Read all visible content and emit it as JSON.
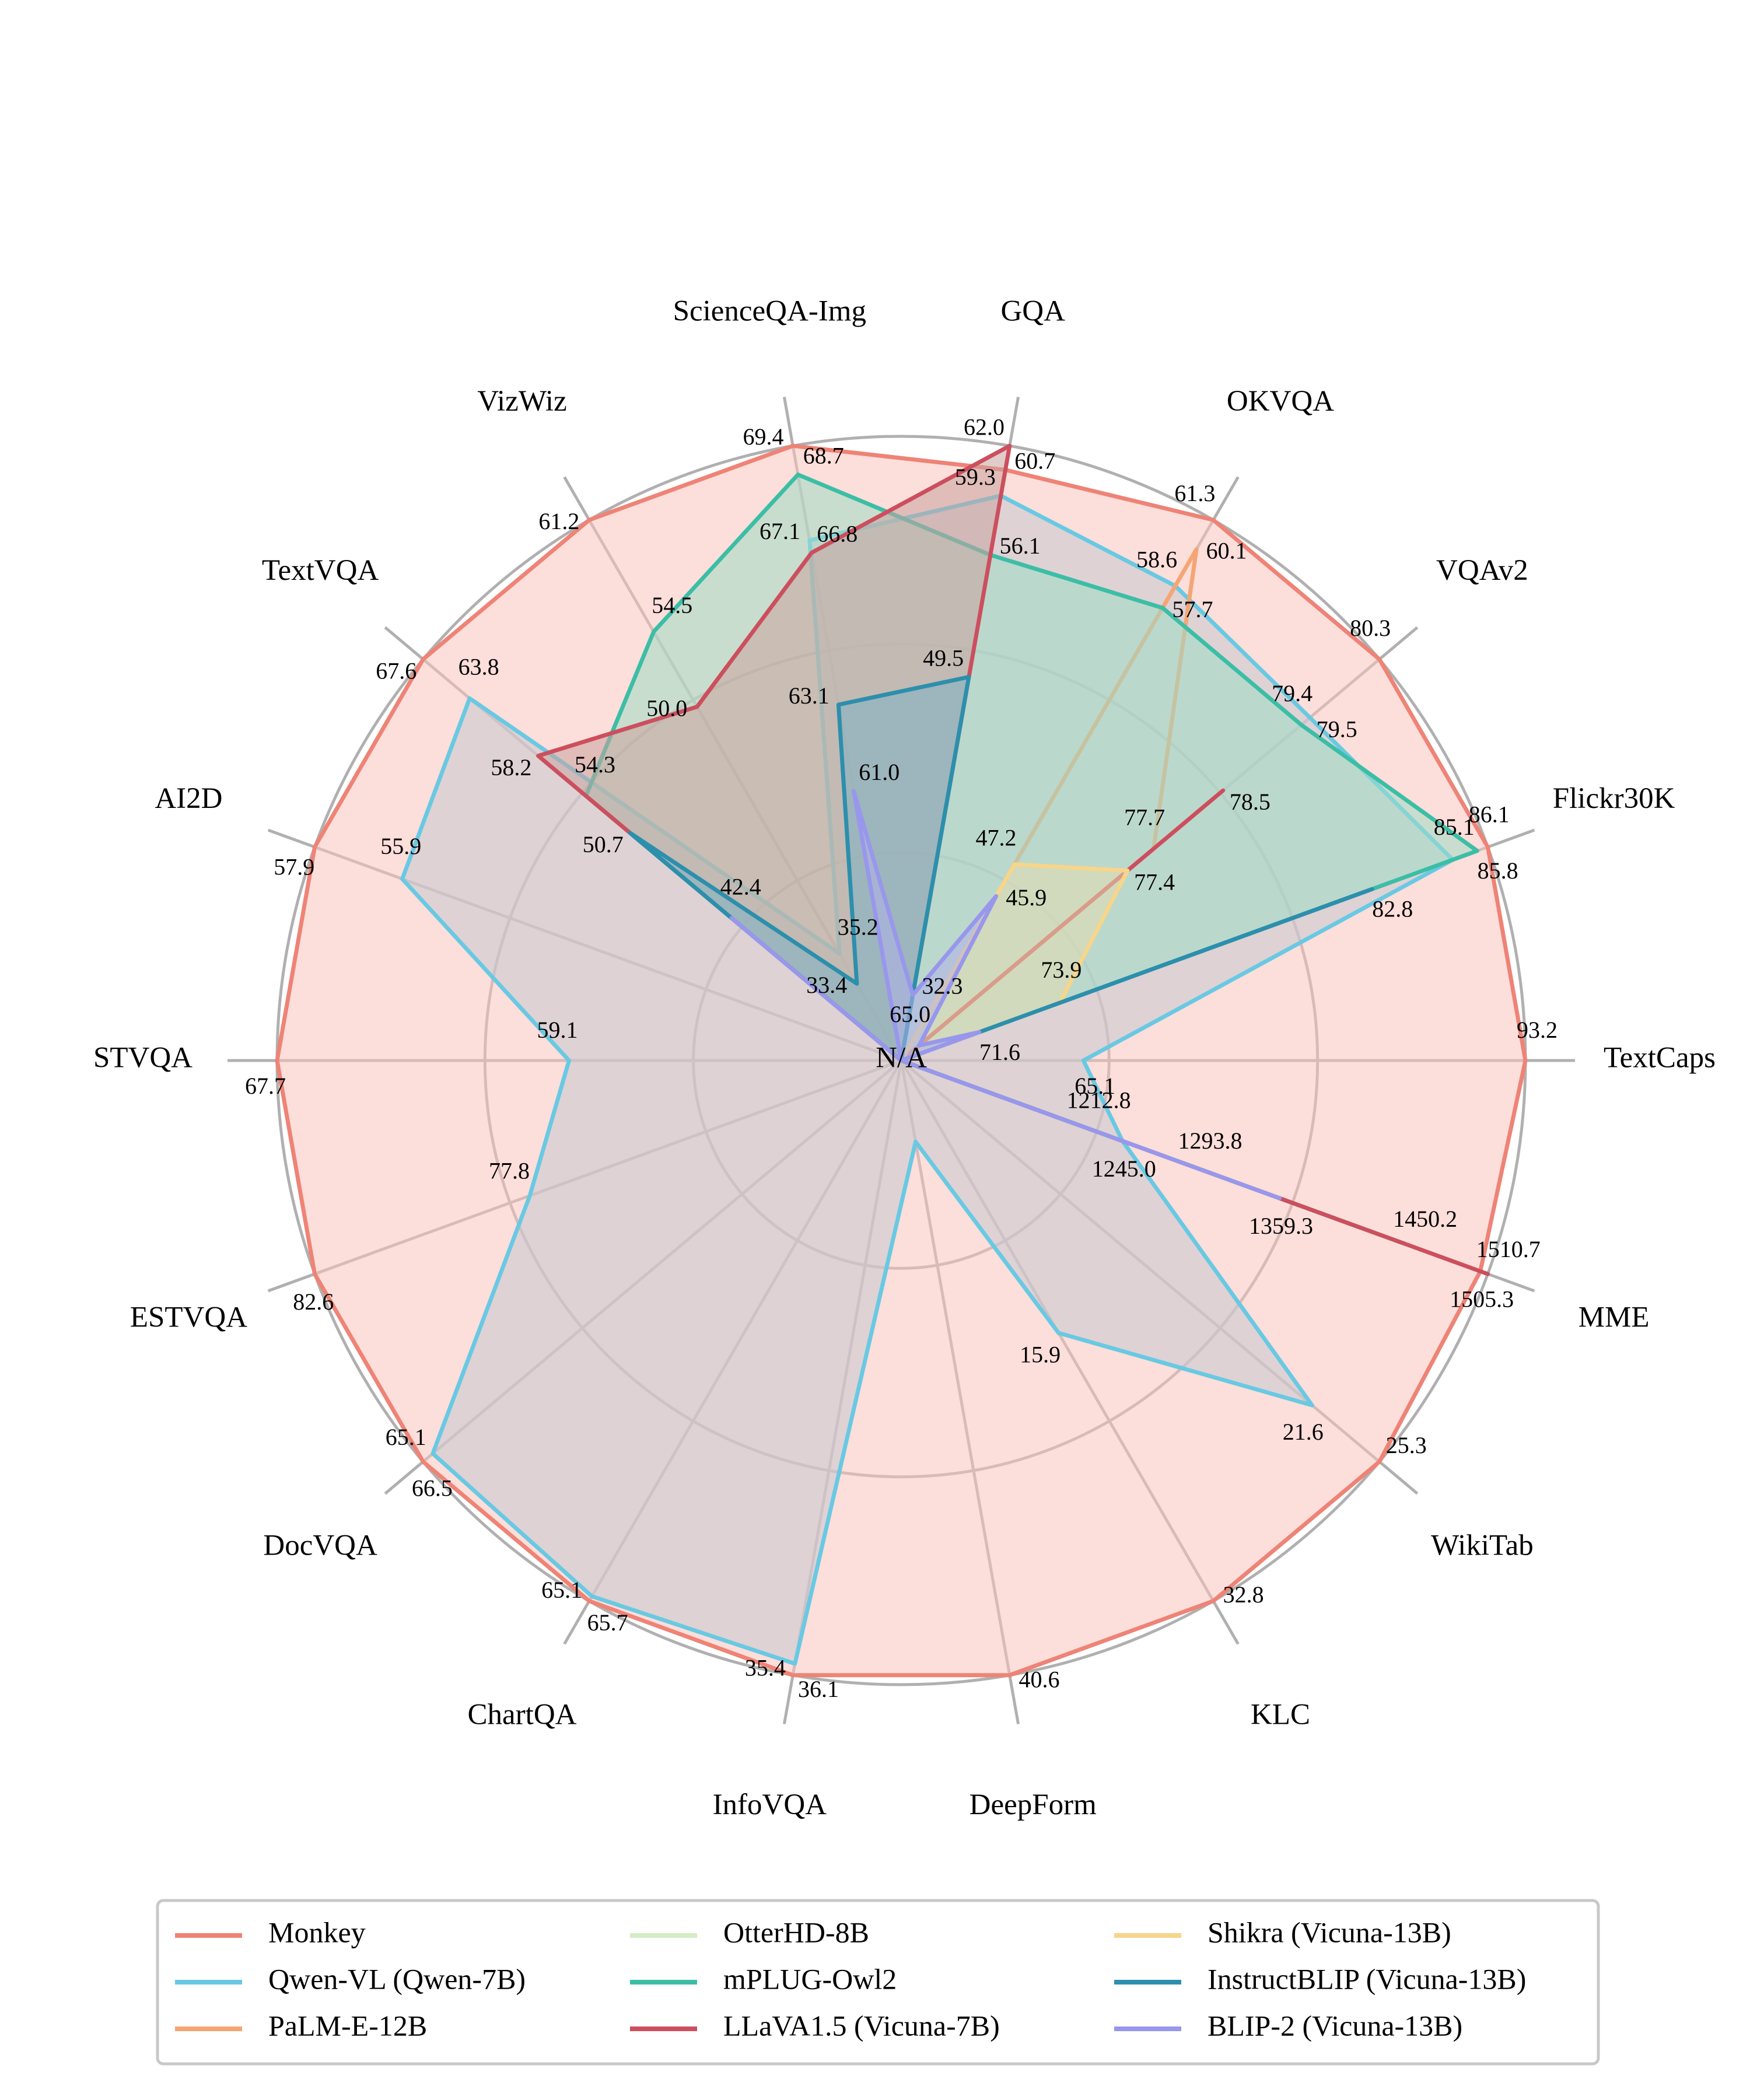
{
  "chart_data": {
    "type": "radar",
    "title": "",
    "center_label": "N/A",
    "grid": true,
    "legend_position": "bottom",
    "legend_columns": 3,
    "axes": [
      "TextCaps",
      "Flickr30K",
      "VQAv2",
      "OKVQA",
      "GQA",
      "ScienceQA-Img",
      "VizWiz",
      "TextVQA",
      "AI2D",
      "STVQA",
      "ESTVQA",
      "DocVQA",
      "ChartQA",
      "InfoVQA",
      "DeepForm",
      "KLC",
      "WikiTab",
      "MME"
    ],
    "axis_ranges": {
      "TextCaps": [
        55,
        93.2
      ],
      "Flickr30K": [
        70,
        86.1
      ],
      "VQAv2": [
        75,
        80.3
      ],
      "OKVQA": [
        40,
        61.3
      ],
      "GQA": [
        30,
        62.0
      ],
      "ScienceQA-Img": [
        55,
        69.4
      ],
      "VizWiz": [
        30,
        61.2
      ],
      "TextVQA": [
        30,
        67.6
      ],
      "AI2D": [
        45,
        57.9
      ],
      "STVQA": [
        50,
        67.7
      ],
      "ESTVQA": [
        70,
        82.6
      ],
      "DocVQA": [
        0,
        66.5
      ],
      "ChartQA": [
        0,
        65.7
      ],
      "InfoVQA": [
        0,
        36.1
      ],
      "DeepForm": [
        0,
        40.6
      ],
      "KLC": [
        0,
        32.8
      ],
      "WikiTab": [
        0,
        25.3
      ],
      "MME": [
        1100,
        1510.7
      ]
    },
    "series": [
      {
        "name": "Monkey",
        "color": "#ee8376",
        "fill": "#f9c2bc",
        "values": [
          93.2,
          86.1,
          80.3,
          61.3,
          60.7,
          69.4,
          61.2,
          67.6,
          57.9,
          67.7,
          82.6,
          66.5,
          65.7,
          36.1,
          40.6,
          32.8,
          25.3,
          1505.3
        ]
      },
      {
        "name": "Qwen-VL (Qwen-7B)",
        "color": "#69c9e3",
        "fill": "#c4c9d1",
        "values": [
          65.1,
          85.1,
          79.5,
          58.6,
          59.3,
          67.1,
          35.2,
          63.8,
          55.9,
          59.1,
          77.8,
          65.1,
          65.1,
          35.4,
          4.0,
          15.9,
          21.6,
          1245.0
        ]
      },
      {
        "name": "PaLM-E-12B",
        "color": "#f5a574",
        "fill": null,
        "values": [
          null,
          null,
          77.7,
          60.1,
          null,
          null,
          null,
          null,
          null,
          null,
          null,
          null,
          null,
          null,
          null,
          null,
          null,
          null
        ]
      },
      {
        "name": "OtterHD-8B",
        "color": "#d4ebc4",
        "fill": null,
        "values": [
          null,
          null,
          null,
          null,
          null,
          null,
          null,
          null,
          null,
          null,
          null,
          null,
          null,
          null,
          null,
          null,
          null,
          1293.8
        ]
      },
      {
        "name": "mPLUG-Owl2",
        "color": "#3cbea6",
        "fill": "#9fdcc6",
        "values": [
          null,
          85.8,
          79.4,
          57.7,
          56.1,
          68.7,
          54.5,
          54.3,
          null,
          null,
          null,
          null,
          null,
          null,
          null,
          null,
          null,
          1450.2
        ]
      },
      {
        "name": "LLaVA1.5 (Vicuna-7B)",
        "color": "#cc4f5e",
        "fill": "#c9a39e",
        "values": [
          null,
          null,
          78.5,
          null,
          62.0,
          66.8,
          50.0,
          58.2,
          null,
          null,
          null,
          null,
          null,
          null,
          null,
          null,
          null,
          1510.7
        ]
      },
      {
        "name": "Shikra (Vicuna-13B)",
        "color": "#f7d58a",
        "fill": "#e4ddb0",
        "values": [
          null,
          73.9,
          77.4,
          47.2,
          null,
          null,
          null,
          null,
          null,
          null,
          null,
          null,
          null,
          null,
          null,
          null,
          null,
          null
        ]
      },
      {
        "name": "InstructBLIP (Vicuna-13B)",
        "color": "#2c8fac",
        "fill": "#7fb0c3",
        "values": [
          null,
          82.8,
          null,
          null,
          49.5,
          63.1,
          33.4,
          50.7,
          null,
          null,
          null,
          null,
          null,
          null,
          null,
          null,
          null,
          1212.8
        ]
      },
      {
        "name": "BLIP-2 (Vicuna-13B)",
        "color": "#9897ec",
        "fill": "#aeb0ea",
        "values": [
          null,
          71.6,
          65.0,
          45.9,
          32.3,
          61.0,
          null,
          42.4,
          null,
          null,
          null,
          null,
          null,
          null,
          null,
          null,
          null,
          1359.3
        ]
      }
    ],
    "value_labels": [
      {
        "axis": "TextCaps",
        "text": "93.2",
        "value": 93.2
      },
      {
        "axis": "TextCaps",
        "text": "65.1",
        "value": 65.1
      },
      {
        "axis": "Flickr30K",
        "text": "86.1",
        "value": 86.1
      },
      {
        "axis": "Flickr30K",
        "text": "85.8",
        "value": 85.8
      },
      {
        "axis": "Flickr30K",
        "text": "85.1",
        "value": 85.1
      },
      {
        "axis": "Flickr30K",
        "text": "82.8",
        "value": 82.8
      },
      {
        "axis": "Flickr30K",
        "text": "73.9",
        "value": 73.9
      },
      {
        "axis": "Flickr30K",
        "text": "71.6",
        "value": 71.6
      },
      {
        "axis": "VQAv2",
        "text": "80.3",
        "value": 80.3
      },
      {
        "axis": "VQAv2",
        "text": "79.5",
        "value": 79.5
      },
      {
        "axis": "VQAv2",
        "text": "79.4",
        "value": 79.4
      },
      {
        "axis": "VQAv2",
        "text": "78.5",
        "value": 78.5
      },
      {
        "axis": "VQAv2",
        "text": "77.7",
        "value": 77.7
      },
      {
        "axis": "VQAv2",
        "text": "77.4",
        "value": 77.4
      },
      {
        "axis": "VQAv2",
        "text": "65.0",
        "value": 65.0
      },
      {
        "axis": "OKVQA",
        "text": "61.3",
        "value": 61.3
      },
      {
        "axis": "OKVQA",
        "text": "60.1",
        "value": 60.1
      },
      {
        "axis": "OKVQA",
        "text": "58.6",
        "value": 58.6
      },
      {
        "axis": "OKVQA",
        "text": "57.7",
        "value": 57.7
      },
      {
        "axis": "OKVQA",
        "text": "47.2",
        "value": 47.2
      },
      {
        "axis": "OKVQA",
        "text": "45.9",
        "value": 45.9
      },
      {
        "axis": "GQA",
        "text": "62.0",
        "value": 62.0
      },
      {
        "axis": "GQA",
        "text": "60.7",
        "value": 60.7
      },
      {
        "axis": "GQA",
        "text": "59.3",
        "value": 59.3
      },
      {
        "axis": "GQA",
        "text": "56.1",
        "value": 56.1
      },
      {
        "axis": "GQA",
        "text": "49.5",
        "value": 49.5
      },
      {
        "axis": "GQA",
        "text": "32.3",
        "value": 32.3
      },
      {
        "axis": "ScienceQA-Img",
        "text": "69.4",
        "value": 69.4
      },
      {
        "axis": "ScienceQA-Img",
        "text": "68.7",
        "value": 68.7
      },
      {
        "axis": "ScienceQA-Img",
        "text": "67.1",
        "value": 67.1
      },
      {
        "axis": "ScienceQA-Img",
        "text": "66.8",
        "value": 66.8
      },
      {
        "axis": "ScienceQA-Img",
        "text": "63.1",
        "value": 63.1
      },
      {
        "axis": "ScienceQA-Img",
        "text": "61.0",
        "value": 61.0
      },
      {
        "axis": "VizWiz",
        "text": "61.2",
        "value": 61.2
      },
      {
        "axis": "VizWiz",
        "text": "54.5",
        "value": 54.5
      },
      {
        "axis": "VizWiz",
        "text": "50.0",
        "value": 50.0
      },
      {
        "axis": "VizWiz",
        "text": "35.2",
        "value": 35.2
      },
      {
        "axis": "VizWiz",
        "text": "33.4",
        "value": 33.4
      },
      {
        "axis": "TextVQA",
        "text": "67.6",
        "value": 67.6
      },
      {
        "axis": "TextVQA",
        "text": "63.8",
        "value": 63.8
      },
      {
        "axis": "TextVQA",
        "text": "58.2",
        "value": 58.2
      },
      {
        "axis": "TextVQA",
        "text": "54.3",
        "value": 54.3
      },
      {
        "axis": "TextVQA",
        "text": "50.7",
        "value": 50.7
      },
      {
        "axis": "TextVQA",
        "text": "42.4",
        "value": 42.4
      },
      {
        "axis": "AI2D",
        "text": "57.9",
        "value": 57.9
      },
      {
        "axis": "AI2D",
        "text": "55.9",
        "value": 55.9
      },
      {
        "axis": "STVQA",
        "text": "67.7",
        "value": 67.7
      },
      {
        "axis": "STVQA",
        "text": "59.1",
        "value": 59.1
      },
      {
        "axis": "ESTVQA",
        "text": "82.6",
        "value": 82.6
      },
      {
        "axis": "ESTVQA",
        "text": "77.8",
        "value": 77.8
      },
      {
        "axis": "DocVQA",
        "text": "66.5",
        "value": 66.5
      },
      {
        "axis": "DocVQA",
        "text": "65.1",
        "value": 65.1
      },
      {
        "axis": "ChartQA",
        "text": "65.7",
        "value": 65.7
      },
      {
        "axis": "ChartQA",
        "text": "65.1",
        "value": 65.1
      },
      {
        "axis": "InfoVQA",
        "text": "36.1",
        "value": 36.1
      },
      {
        "axis": "InfoVQA",
        "text": "35.4",
        "value": 35.4
      },
      {
        "axis": "DeepForm",
        "text": "40.6",
        "value": 40.6
      },
      {
        "axis": "KLC",
        "text": "32.8",
        "value": 32.8
      },
      {
        "axis": "KLC",
        "text": "15.9",
        "value": 15.9
      },
      {
        "axis": "WikiTab",
        "text": "25.3",
        "value": 25.3
      },
      {
        "axis": "WikiTab",
        "text": "21.6",
        "value": 21.6
      },
      {
        "axis": "MME",
        "text": "1510.7",
        "value": 1510.7
      },
      {
        "axis": "MME",
        "text": "1505.3",
        "value": 1505.3
      },
      {
        "axis": "MME",
        "text": "1450.2",
        "value": 1450.2
      },
      {
        "axis": "MME",
        "text": "1359.3",
        "value": 1359.3
      },
      {
        "axis": "MME",
        "text": "1293.8",
        "value": 1293.8
      },
      {
        "axis": "MME",
        "text": "1245.0",
        "value": 1245.0
      },
      {
        "axis": "MME",
        "text": "1212.8",
        "value": 1212.8
      }
    ]
  }
}
